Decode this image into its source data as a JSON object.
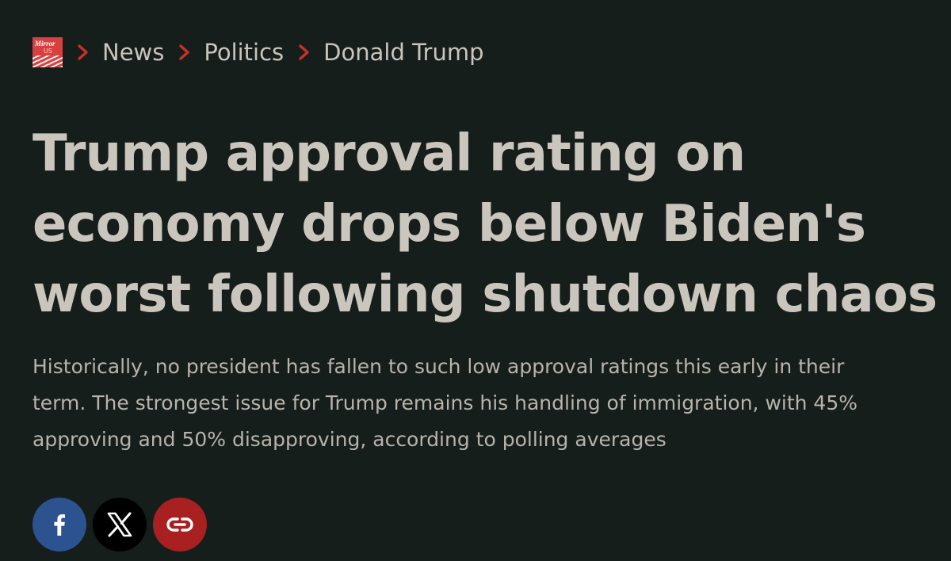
{
  "breadcrumb": {
    "logo_text": "Mirror",
    "logo_sub": "US",
    "items": [
      {
        "label": "News"
      },
      {
        "label": "Politics"
      },
      {
        "label": "Donald Trump"
      }
    ],
    "separator_icon": "chevron-right-icon"
  },
  "article": {
    "headline_lines": [
      "Trump approval rating on",
      "economy drops below Biden's",
      "worst following shutdown chaos"
    ],
    "standfirst_lines": [
      "Historically, no president has fallen to such low approval ratings this early in their",
      "term. The strongest issue for Trump remains his handling of immigration, with 45%",
      "approving and 50% disapproving, according to polling averages"
    ]
  },
  "share": {
    "buttons": [
      {
        "name": "facebook",
        "icon": "facebook-icon",
        "color": "#2d5290"
      },
      {
        "name": "x",
        "icon": "x-icon",
        "color": "#000000"
      },
      {
        "name": "copy-link",
        "icon": "link-icon",
        "color": "#a82020"
      }
    ]
  },
  "colors": {
    "background": "#161e1c",
    "text": "#cbc6bd",
    "accent": "#c8302a"
  }
}
